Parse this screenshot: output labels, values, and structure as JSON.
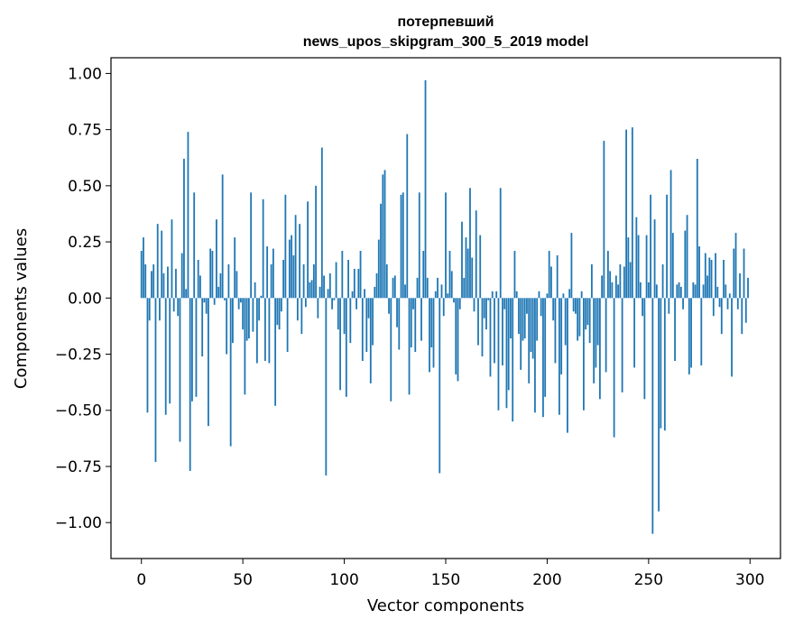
{
  "chart_data": {
    "type": "bar",
    "title": "потерпевший",
    "subtitle": "news_upos_skipgram_300_5_2019 model",
    "xlabel": "Vector components",
    "ylabel": "Components values",
    "xlim": [
      -15,
      315
    ],
    "ylim": [
      -1.16,
      1.07
    ],
    "xticks": [
      0,
      50,
      100,
      150,
      200,
      250,
      300
    ],
    "yticks": [
      1.0,
      0.75,
      0.5,
      0.25,
      0.0,
      -0.25,
      -0.5,
      -0.75,
      -1.0
    ],
    "ytick_labels": [
      "1.00",
      "0.75",
      "0.50",
      "0.25",
      "0.00",
      "−0.25",
      "−0.50",
      "−0.75",
      "−1.00"
    ],
    "grid": false,
    "bar_color": "#1f77b4",
    "x": [
      0,
      1,
      2,
      3,
      4,
      5,
      6,
      7,
      8,
      9,
      10,
      11,
      12,
      13,
      14,
      15,
      16,
      17,
      18,
      19,
      20,
      21,
      22,
      23,
      24,
      25,
      26,
      27,
      28,
      29,
      30,
      31,
      32,
      33,
      34,
      35,
      36,
      37,
      38,
      39,
      40,
      41,
      42,
      43,
      44,
      45,
      46,
      47,
      48,
      49,
      50,
      51,
      52,
      53,
      54,
      55,
      56,
      57,
      58,
      59,
      60,
      61,
      62,
      63,
      64,
      65,
      66,
      67,
      68,
      69,
      70,
      71,
      72,
      73,
      74,
      75,
      76,
      77,
      78,
      79,
      80,
      81,
      82,
      83,
      84,
      85,
      86,
      87,
      88,
      89,
      90,
      91,
      92,
      93,
      94,
      95,
      96,
      97,
      98,
      99,
      100,
      101,
      102,
      103,
      104,
      105,
      106,
      107,
      108,
      109,
      110,
      111,
      112,
      113,
      114,
      115,
      116,
      117,
      118,
      119,
      120,
      121,
      122,
      123,
      124,
      125,
      126,
      127,
      128,
      129,
      130,
      131,
      132,
      133,
      134,
      135,
      136,
      137,
      138,
      139,
      140,
      141,
      142,
      143,
      144,
      145,
      146,
      147,
      148,
      149,
      150,
      151,
      152,
      153,
      154,
      155,
      156,
      157,
      158,
      159,
      160,
      161,
      162,
      163,
      164,
      165,
      166,
      167,
      168,
      169,
      170,
      171,
      172,
      173,
      174,
      175,
      176,
      177,
      178,
      179,
      180,
      181,
      182,
      183,
      184,
      185,
      186,
      187,
      188,
      189,
      190,
      191,
      192,
      193,
      194,
      195,
      196,
      197,
      198,
      199,
      200,
      201,
      202,
      203,
      204,
      205,
      206,
      207,
      208,
      209,
      210,
      211,
      212,
      213,
      214,
      215,
      216,
      217,
      218,
      219,
      220,
      221,
      222,
      223,
      224,
      225,
      226,
      227,
      228,
      229,
      230,
      231,
      232,
      233,
      234,
      235,
      236,
      237,
      238,
      239,
      240,
      241,
      242,
      243,
      244,
      245,
      246,
      247,
      248,
      249,
      250,
      251,
      252,
      253,
      254,
      255,
      256,
      257,
      258,
      259,
      260,
      261,
      262,
      263,
      264,
      265,
      266,
      267,
      268,
      269,
      270,
      271,
      272,
      273,
      274,
      275,
      276,
      277,
      278,
      279,
      280,
      281,
      282,
      283,
      284,
      285,
      286,
      287,
      288,
      289,
      290,
      291,
      292,
      293,
      294,
      295,
      296,
      297,
      298,
      299
    ],
    "values": [
      0.21,
      0.27,
      0.15,
      -0.51,
      -0.1,
      0.12,
      0.15,
      -0.73,
      0.33,
      -0.1,
      0.3,
      0.11,
      -0.52,
      0.14,
      -0.47,
      0.35,
      -0.06,
      0.13,
      -0.08,
      -0.64,
      0.2,
      0.62,
      0.04,
      0.74,
      -0.77,
      -0.46,
      0.47,
      -0.44,
      0.17,
      0.1,
      -0.26,
      -0.02,
      -0.07,
      -0.57,
      0.22,
      0.21,
      -0.03,
      0.35,
      0.05,
      0.11,
      0.55,
      -0.01,
      -0.25,
      0.15,
      -0.66,
      -0.2,
      0.27,
      0.12,
      -0.05,
      -0.02,
      -0.14,
      -0.43,
      -0.19,
      -0.18,
      0.47,
      -0.15,
      0.07,
      -0.29,
      -0.1,
      0.01,
      0.44,
      -0.28,
      0.23,
      -0.29,
      0.15,
      0.22,
      -0.48,
      -0.12,
      -0.14,
      -0.06,
      0.17,
      0.46,
      -0.24,
      0.26,
      0.28,
      0.19,
      0.37,
      -0.1,
      0.33,
      -0.16,
      0.15,
      -0.04,
      0.43,
      0.07,
      0.08,
      0.15,
      0.5,
      -0.09,
      0.05,
      0.67,
      0.1,
      -0.79,
      0.04,
      0.11,
      -0.05,
      -0.01,
      0.16,
      -0.14,
      -0.41,
      0.21,
      -0.16,
      -0.44,
      0.17,
      -0.2,
      0.03,
      0.13,
      -0.05,
      0.13,
      0.21,
      -0.28,
      0.04,
      -0.24,
      -0.09,
      -0.38,
      -0.21,
      0.05,
      0.11,
      0.26,
      0.42,
      0.55,
      0.57,
      0.15,
      -0.07,
      -0.46,
      0.09,
      0.1,
      -0.13,
      -0.23,
      0.46,
      0.47,
      0.06,
      0.73,
      -0.43,
      -0.22,
      -0.05,
      -0.24,
      0.09,
      0.47,
      -0.19,
      0.21,
      0.97,
      0.09,
      -0.33,
      -0.22,
      -0.31,
      0.03,
      0.09,
      -0.78,
      0.06,
      -0.08,
      0.47,
      0.02,
      0.21,
      0.12,
      -0.02,
      -0.34,
      -0.37,
      -0.05,
      0.34,
      0.09,
      0.27,
      0.22,
      0.49,
      0.18,
      -0.06,
      0.39,
      -0.21,
      0.28,
      -0.26,
      -0.09,
      -0.14,
      -0.01,
      -0.35,
      0.03,
      -0.29,
      0.03,
      -0.5,
      0.49,
      -0.3,
      -0.05,
      -0.49,
      -0.41,
      -0.18,
      -0.55,
      0.21,
      0.03,
      -0.16,
      -0.32,
      -0.19,
      -0.18,
      -0.07,
      -0.38,
      -0.24,
      -0.27,
      -0.51,
      -0.19,
      0.03,
      -0.08,
      -0.53,
      -0.44,
      0.02,
      0.21,
      0.14,
      -0.1,
      -0.29,
      0.19,
      -0.52,
      -0.34,
      0.02,
      -0.21,
      -0.6,
      0.04,
      0.29,
      -0.06,
      -0.07,
      -0.19,
      -0.17,
      0.03,
      -0.5,
      -0.14,
      -0.12,
      -0.2,
      0.15,
      -0.38,
      -0.31,
      -0.21,
      -0.45,
      0.1,
      0.7,
      -0.33,
      0.21,
      0.12,
      0.07,
      -0.62,
      0.1,
      0.06,
      0.15,
      -0.42,
      0.14,
      0.75,
      0.27,
      0.16,
      0.76,
      -0.31,
      0.36,
      0.28,
      0.07,
      -0.08,
      -0.45,
      0.28,
      0.07,
      0.46,
      -1.05,
      0.35,
      0.06,
      -0.95,
      -0.58,
      0.15,
      -0.59,
      0.46,
      -0.07,
      0.57,
      0.29,
      -0.28,
      0.06,
      0.07,
      0.05,
      -0.05,
      0.3,
      0.37,
      -0.34,
      -0.31,
      0.07,
      0.06,
      0.62,
      0.23,
      -0.3,
      0.06,
      0.2,
      0.1,
      0.18,
      0.17,
      -0.08,
      0.2,
      0.05,
      -0.04,
      -0.16,
      0.17,
      0.06,
      -0.05,
      0.02,
      -0.35,
      0.22,
      0.29,
      -0.05,
      0.11,
      -0.16,
      0.22,
      -0.11,
      0.09
    ]
  }
}
